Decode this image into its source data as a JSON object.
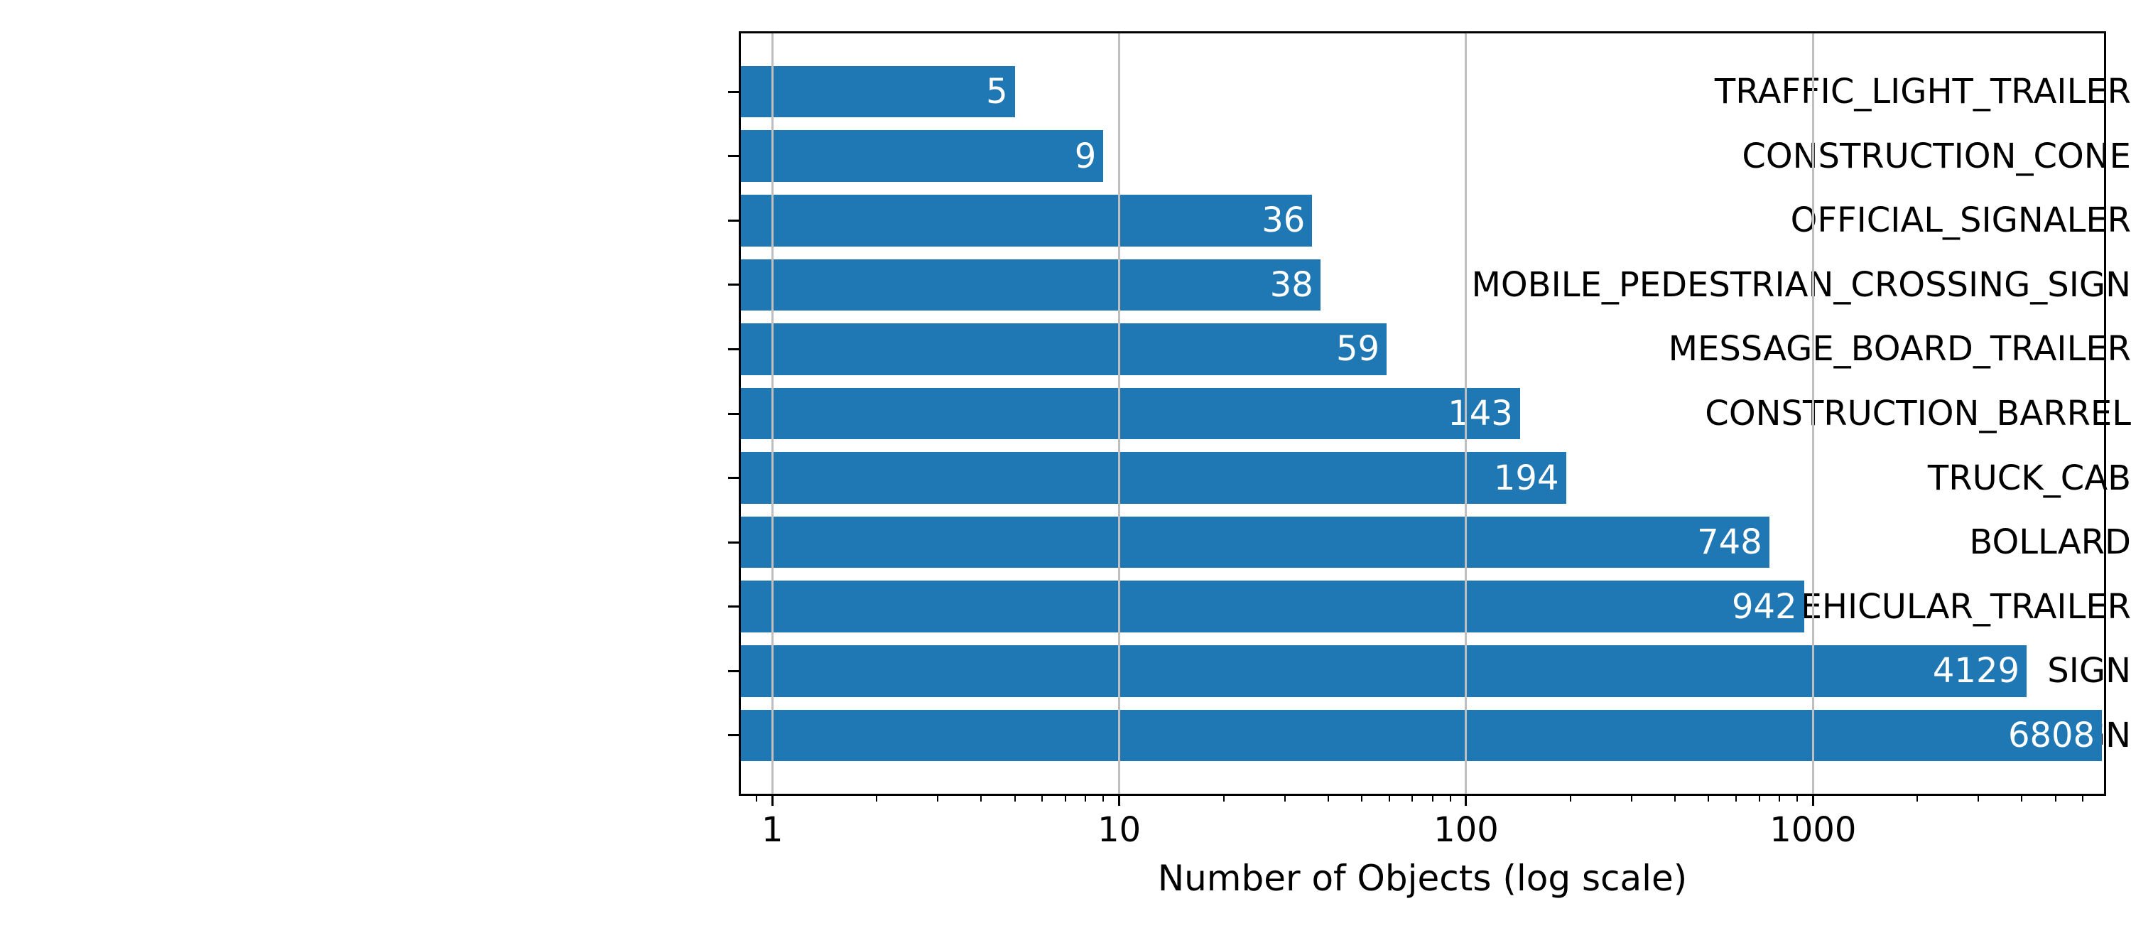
{
  "figure": {
    "background": "#ffffff"
  },
  "chart_data": {
    "type": "bar",
    "orientation": "horizontal",
    "title": "",
    "xlabel": "Number of Objects (log scale)",
    "ylabel": "",
    "xscale": "log",
    "xlim": [
      0.8,
      7000
    ],
    "categories": [
      "TRAFFIC_LIGHT_TRAILER",
      "CONSTRUCTION_CONE",
      "OFFICIAL_SIGNALER",
      "MOBILE_PEDESTRIAN_CROSSING_SIGN",
      "MESSAGE_BOARD_TRAILER",
      "CONSTRUCTION_BARREL",
      "TRUCK_CAB",
      "BOLLARD",
      "VEHICULAR_TRAILER",
      "SIGN",
      "STOP_SIGN"
    ],
    "values": [
      5,
      9,
      36,
      38,
      59,
      143,
      194,
      748,
      942,
      4129,
      6808
    ],
    "value_labels": [
      "5",
      "9",
      "36",
      "38",
      "59",
      "143",
      "194",
      "748",
      "942",
      "4129",
      "6808"
    ],
    "xticks": [
      1,
      10,
      100,
      1000
    ],
    "xtick_labels": [
      "1",
      "10",
      "100",
      "1000"
    ],
    "xticks_minor": [
      0.9,
      2,
      3,
      4,
      5,
      6,
      7,
      8,
      9,
      20,
      30,
      40,
      50,
      60,
      70,
      80,
      90,
      200,
      300,
      400,
      500,
      600,
      700,
      800,
      900,
      2000,
      3000,
      4000,
      5000,
      6000
    ],
    "grid": true,
    "grid_axis": "x",
    "legend": "none",
    "bar_color": "#1f77b4",
    "grid_color": "#bfbfbf",
    "value_label_color": "#ffffff",
    "text_color": "#000000",
    "bar_height_fraction": 0.8
  }
}
